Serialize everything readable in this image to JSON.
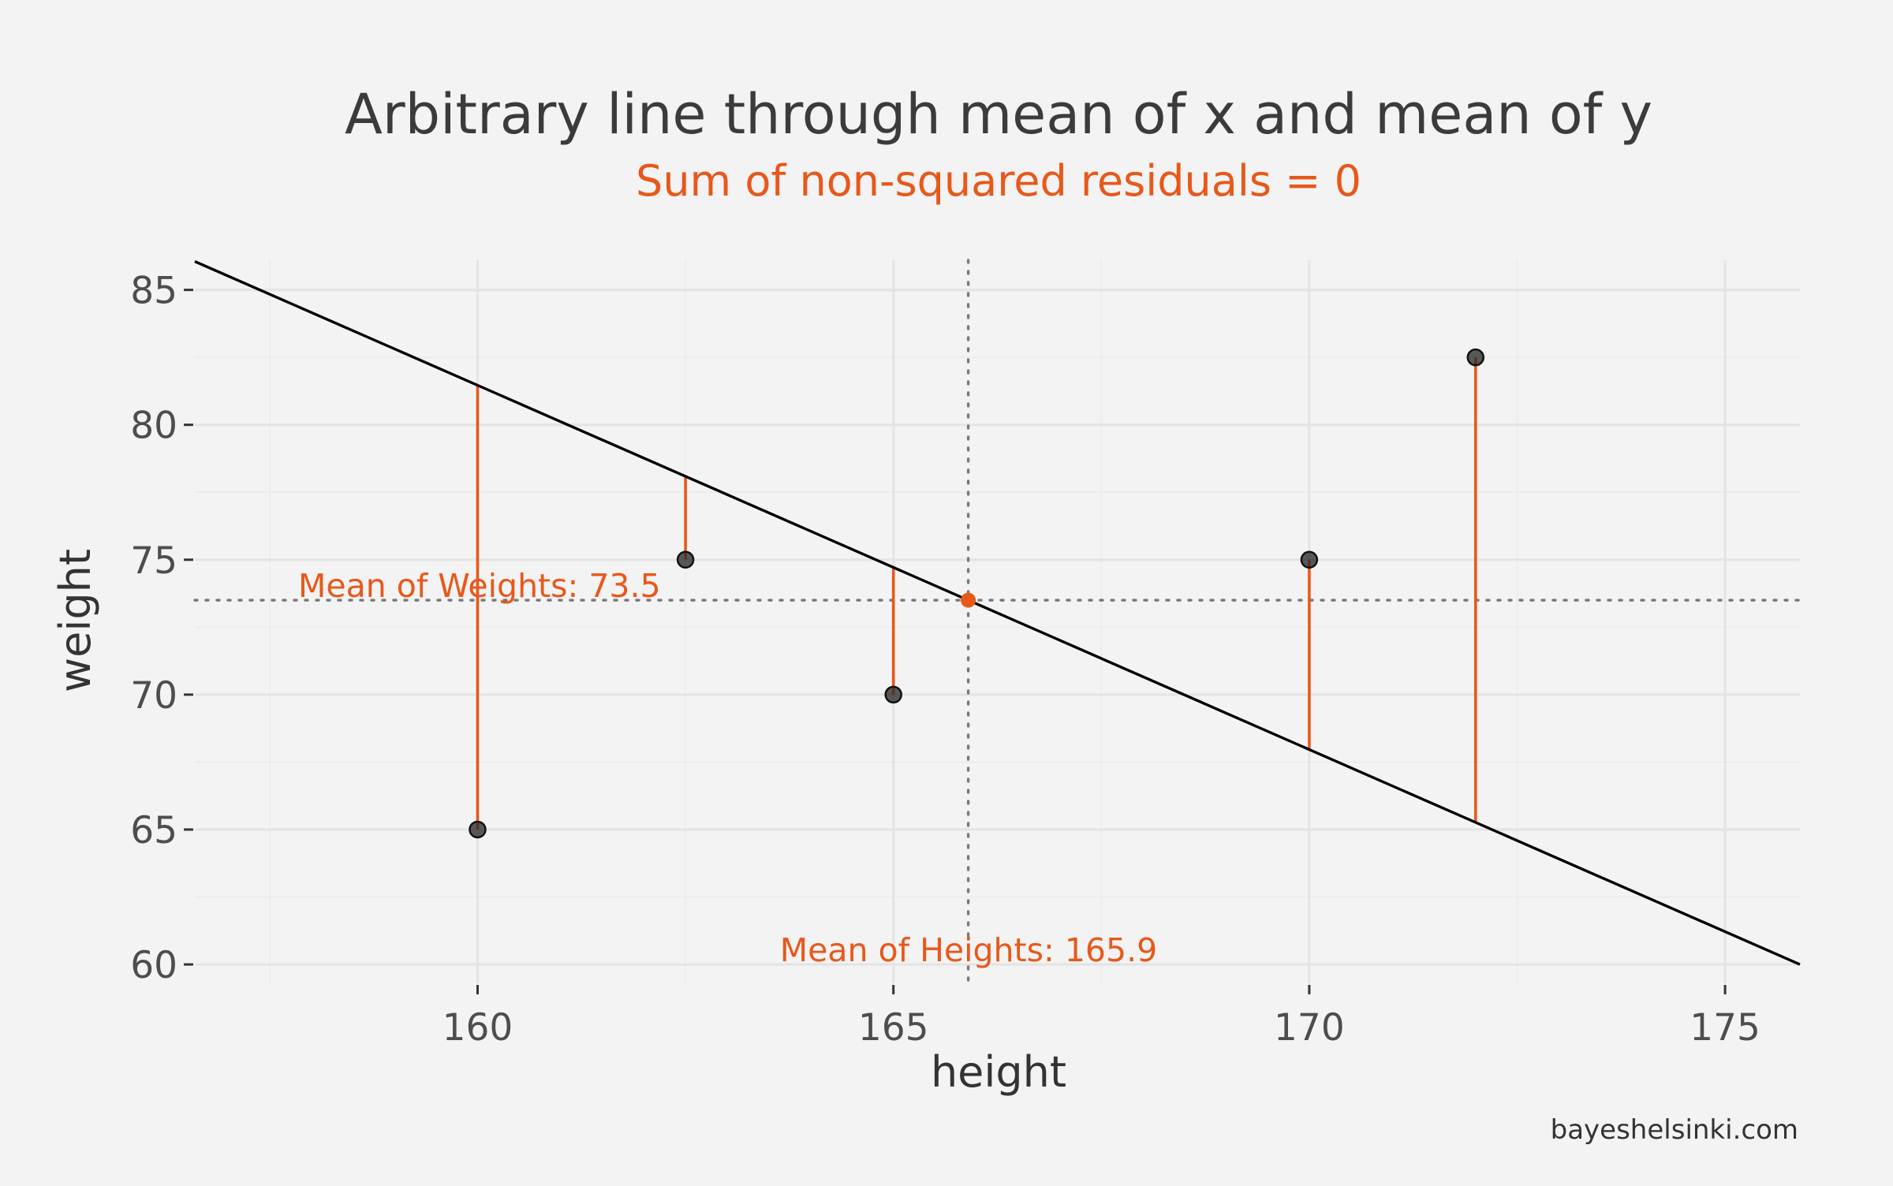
{
  "chart_data": {
    "type": "scatter",
    "title": "Arbitrary line through mean of x and mean of y",
    "subtitle": "Sum of non-squared residuals = 0",
    "xlabel": "height",
    "ylabel": "weight",
    "xlim": [
      156.6,
      175.9
    ],
    "ylim": [
      59.3,
      86.1
    ],
    "x_ticks": [
      160,
      165,
      170,
      175
    ],
    "y_ticks": [
      60,
      65,
      70,
      75,
      80,
      85
    ],
    "x_tick_labels": [
      "160",
      "165",
      "170",
      "175"
    ],
    "y_tick_labels": [
      "60",
      "65",
      "70",
      "75",
      "80",
      "85"
    ],
    "grid": true,
    "points": [
      {
        "x": 160,
        "y": 65
      },
      {
        "x": 162.5,
        "y": 75
      },
      {
        "x": 165,
        "y": 70
      },
      {
        "x": 170,
        "y": 75
      },
      {
        "x": 172,
        "y": 82.5
      }
    ],
    "line": {
      "slope": -1.35,
      "through": {
        "x": 165.9,
        "y": 73.5
      }
    },
    "mean_x": 165.9,
    "mean_y": 73.5,
    "annotations": {
      "mean_y_label": "Mean of Weights: 73.5",
      "mean_x_label": "Mean of Heights: 165.9"
    },
    "caption": "bayeshelsinki.com",
    "colors": {
      "accent": "#e8581a",
      "line": "#000000",
      "points": "#2b2b2b",
      "text": "#3b3b3b",
      "background": "#f3f3f3"
    }
  }
}
